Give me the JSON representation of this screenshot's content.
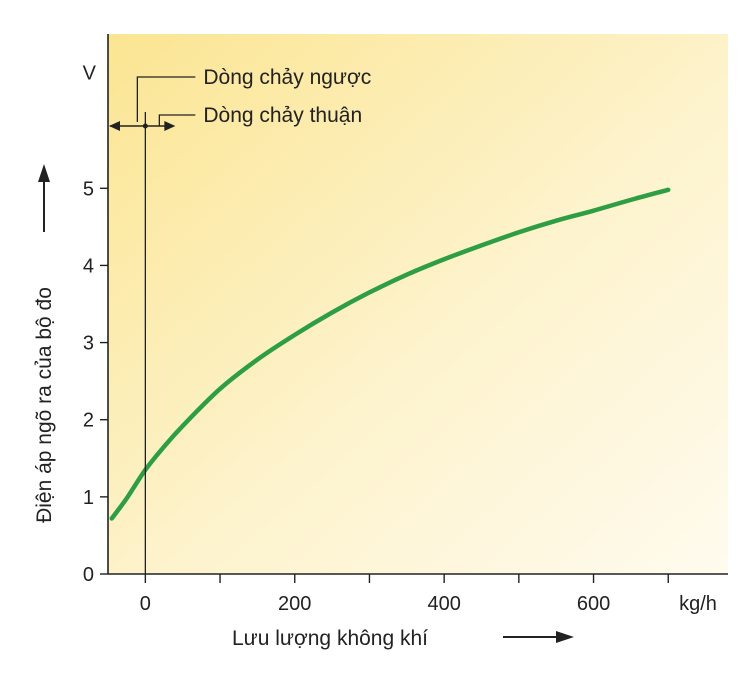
{
  "chart_data": {
    "type": "line",
    "title": "",
    "xlabel": "Lưu lượng không khí",
    "ylabel": "Điện áp ngõ ra của bộ đo",
    "x_unit": "kg/h",
    "y_unit": "V",
    "xlim": [
      -50,
      780
    ],
    "ylim": [
      0,
      7
    ],
    "x_ticks": [
      0,
      200,
      400,
      600
    ],
    "x_minor_ticks": [
      100,
      300,
      500,
      700
    ],
    "y_ticks": [
      0,
      1,
      2,
      3,
      4,
      5
    ],
    "annotations": {
      "reverse_flow": "Dòng chảy ngược",
      "forward_flow": "Dòng chảy thuận"
    },
    "series": [
      {
        "color": "#2e9e44",
        "x": [
          -45,
          -25,
          0,
          25,
          50,
          100,
          150,
          200,
          250,
          300,
          350,
          400,
          450,
          500,
          550,
          600,
          650,
          700
        ],
        "y": [
          0.72,
          0.98,
          1.35,
          1.65,
          1.92,
          2.4,
          2.78,
          3.1,
          3.39,
          3.65,
          3.88,
          4.08,
          4.26,
          4.43,
          4.58,
          4.71,
          4.85,
          4.98
        ]
      }
    ]
  }
}
